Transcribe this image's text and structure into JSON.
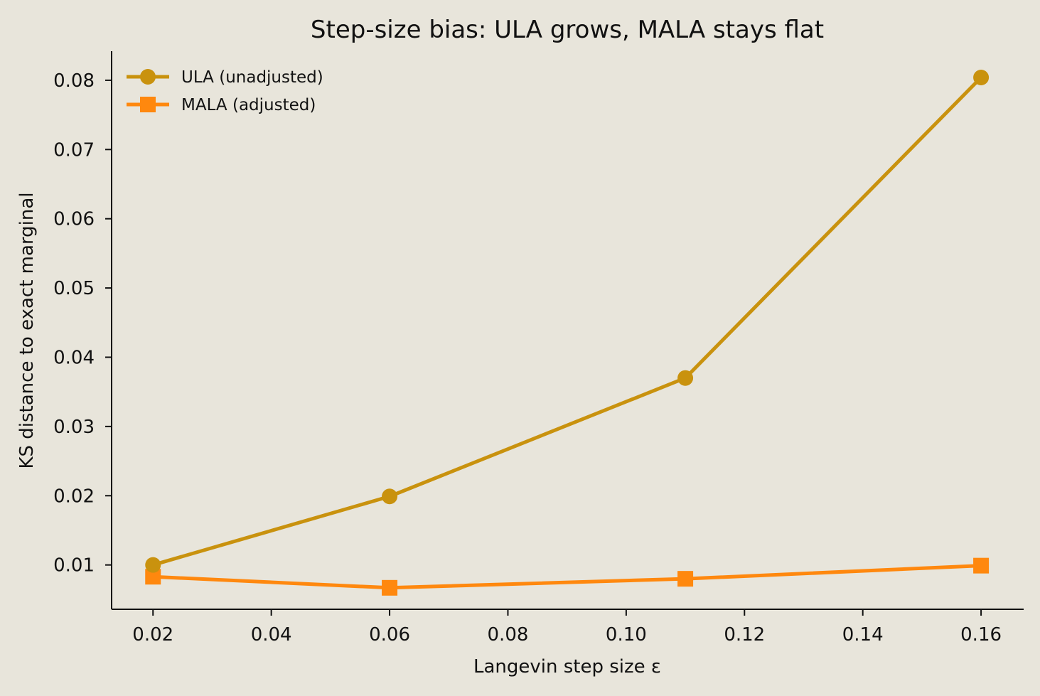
{
  "chart_data": {
    "type": "line",
    "title": "Step-size bias: ULA grows, MALA stays flat",
    "xlabel": "Langevin step size  ε",
    "ylabel": "KS distance to exact marginal",
    "x": [
      0.02,
      0.06,
      0.11,
      0.16
    ],
    "xlim": [
      0.013,
      0.1672
    ],
    "ylim": [
      0.0036,
      0.0842
    ],
    "xticks": [
      0.02,
      0.04,
      0.06,
      0.08,
      0.1,
      0.12,
      0.14,
      0.16
    ],
    "xtick_labels": [
      "0.02",
      "0.04",
      "0.06",
      "0.08",
      "0.10",
      "0.12",
      "0.14",
      "0.16"
    ],
    "yticks": [
      0.01,
      0.02,
      0.03,
      0.04,
      0.05,
      0.06,
      0.07,
      0.08
    ],
    "ytick_labels": [
      "0.01",
      "0.02",
      "0.03",
      "0.04",
      "0.05",
      "0.06",
      "0.07",
      "0.08"
    ],
    "grid": false,
    "legend_position": "top-left",
    "series": [
      {
        "name": "ULA (unadjusted)",
        "values": [
          0.01,
          0.0199,
          0.037,
          0.0804
        ],
        "color": "#C9920E",
        "marker": "circle"
      },
      {
        "name": "MALA (adjusted)",
        "values": [
          0.0083,
          0.0067,
          0.008,
          0.0099
        ],
        "color": "#FF880E",
        "marker": "square"
      }
    ]
  }
}
